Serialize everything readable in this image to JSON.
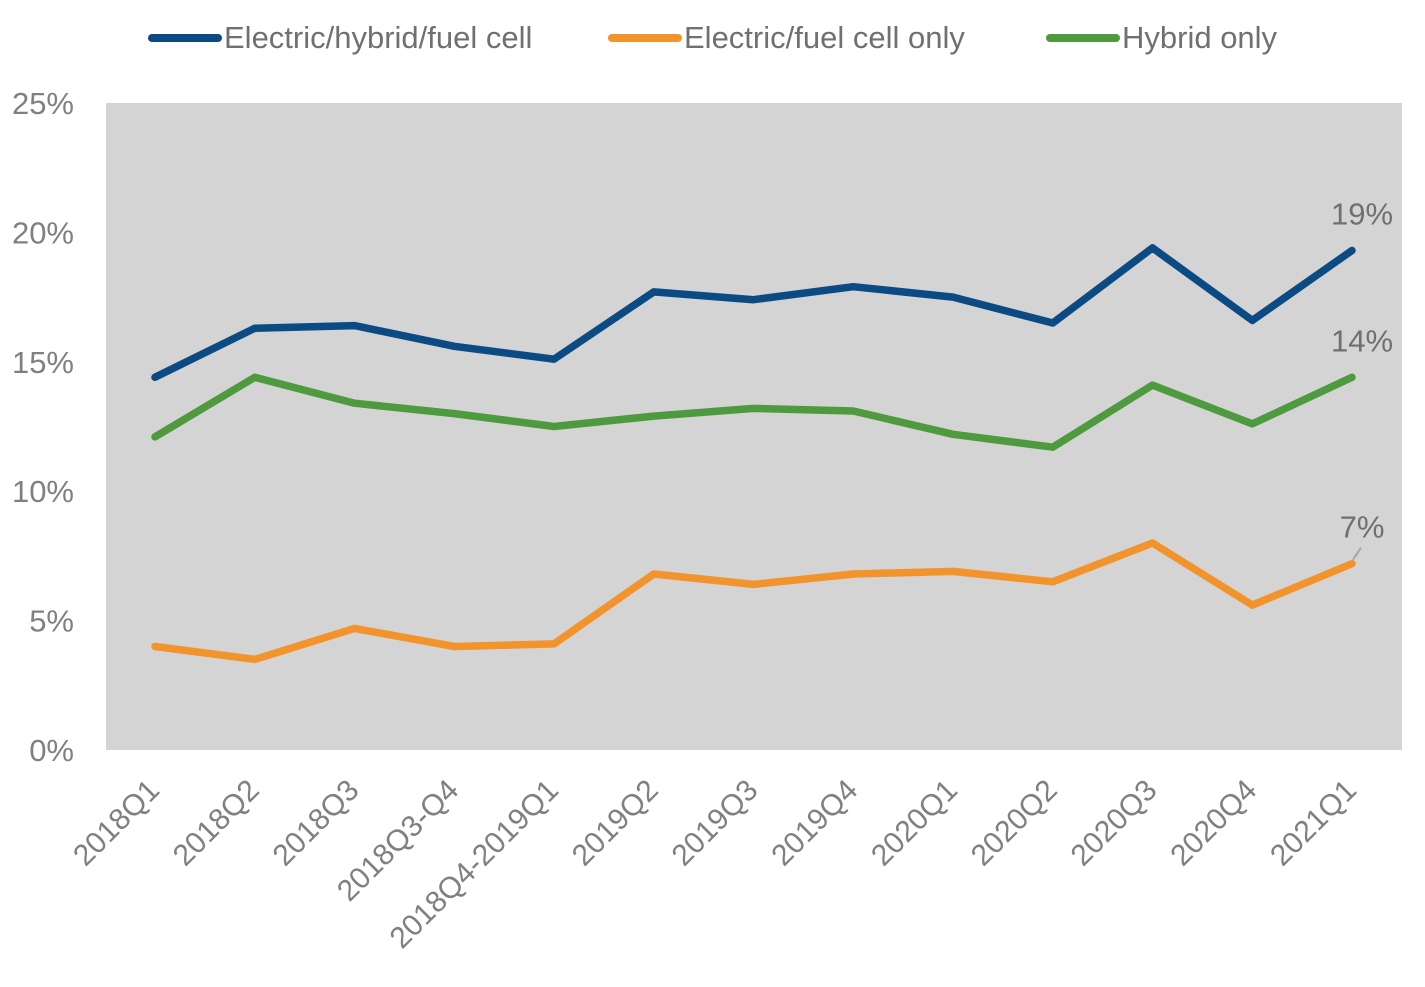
{
  "chart_data": {
    "type": "line",
    "categories": [
      "2018Q1",
      "2018Q2",
      "2018Q3",
      "2018Q3-Q4",
      "2018Q4-2019Q1",
      "2019Q2",
      "2019Q3",
      "2019Q4",
      "2020Q1",
      "2020Q2",
      "2020Q3",
      "2020Q4",
      "2021Q1"
    ],
    "series": [
      {
        "name": "Electric/hybrid/fuel cell",
        "color": "#0B4A82",
        "values": [
          14.4,
          16.3,
          16.4,
          15.6,
          15.1,
          17.7,
          17.4,
          17.9,
          17.5,
          16.5,
          19.4,
          16.6,
          19.3
        ],
        "end_label": "19%"
      },
      {
        "name": "Electric/fuel cell only",
        "color": "#F2932C",
        "values": [
          4.0,
          3.5,
          4.7,
          4.0,
          4.1,
          6.8,
          6.4,
          6.8,
          6.9,
          6.5,
          8.0,
          5.6,
          7.2
        ],
        "end_label": "7%"
      },
      {
        "name": "Hybrid only",
        "color": "#4E9A3E",
        "values": [
          12.1,
          14.4,
          13.4,
          13.0,
          12.5,
          12.9,
          13.2,
          13.1,
          12.2,
          11.7,
          14.1,
          12.6,
          14.4
        ],
        "end_label": "14%"
      }
    ],
    "yticks": [
      "0%",
      "5%",
      "10%",
      "15%",
      "20%",
      "25%"
    ],
    "ylim": [
      0,
      25
    ],
    "grid": false,
    "plot_background": "#D4D4D4",
    "legend_position": "top"
  }
}
